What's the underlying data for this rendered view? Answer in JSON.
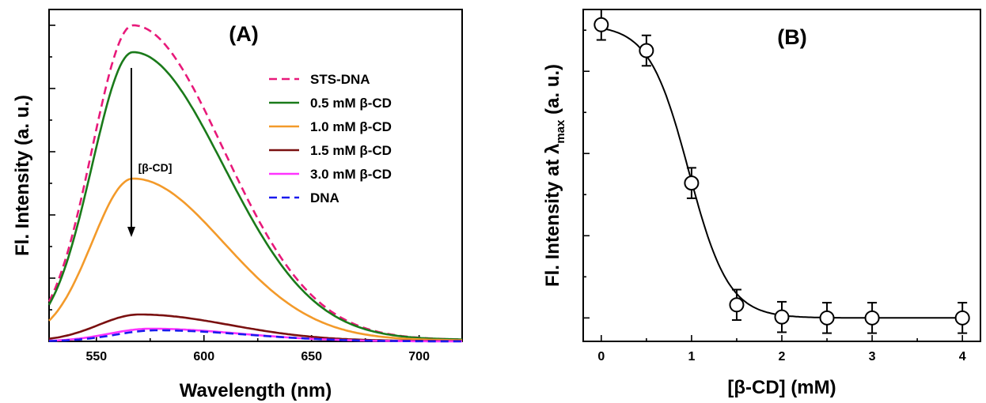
{
  "chart_data": [
    {
      "type": "line",
      "panel_label": "(A)",
      "xlabel": "Wavelength (nm)",
      "ylabel": "Fl. Intensity (a. u.)",
      "xlim": [
        528,
        720
      ],
      "ylim": [
        0,
        1.05
      ],
      "x_ticks": [
        550,
        600,
        650,
        700
      ],
      "y_tick_labels_shown": false,
      "legend_position": "right",
      "annotation": {
        "text": "[β-CD]",
        "arrow": "down",
        "x": 567
      },
      "series": [
        {
          "name": "STS-DNA",
          "color": "#e8197a",
          "style": "dashed",
          "peak_x": 567,
          "peak_y": 1.0,
          "base": 0.005
        },
        {
          "name": "0.5 mM β-CD",
          "color": "#1a7a1a",
          "style": "solid",
          "peak_x": 567,
          "peak_y": 0.915,
          "base": 0.005
        },
        {
          "name": "1.0 mM β-CD",
          "color": "#f39a2a",
          "style": "solid",
          "peak_x": 567,
          "peak_y": 0.515,
          "base": 0.003
        },
        {
          "name": "1.5 mM β-CD",
          "color": "#7a1010",
          "style": "solid",
          "peak_x": 570,
          "peak_y": 0.085,
          "base": 0.001
        },
        {
          "name": "3.0 mM β-CD",
          "color": "#ff33ff",
          "style": "solid",
          "peak_x": 575,
          "peak_y": 0.04,
          "base": 0.0
        },
        {
          "name": "DNA",
          "color": "#1a1aee",
          "style": "dashed",
          "peak_x": 578,
          "peak_y": 0.035,
          "base": 0.0
        }
      ]
    },
    {
      "type": "scatter",
      "panel_label": "(B)",
      "xlabel": "[β-CD] (mM)",
      "ylabel_main": "Fl. Intensity at λ",
      "ylabel_sub": "max",
      "ylabel_tail": " (a. u.)",
      "xlim": [
        -0.2,
        4.2
      ],
      "ylim": [
        -0.04,
        1.05
      ],
      "x_ticks": [
        0,
        1,
        2,
        3,
        4
      ],
      "y_tick_labels_shown": false,
      "x": [
        0,
        0.5,
        1.0,
        1.5,
        2.0,
        2.5,
        3.0,
        4.0
      ],
      "y": [
        1.0,
        0.915,
        0.48,
        0.08,
        0.04,
        0.037,
        0.037,
        0.037
      ],
      "error": [
        0.05,
        0.05,
        0.05,
        0.05,
        0.05,
        0.05,
        0.05,
        0.05
      ],
      "fit_curve": {
        "type": "sigmoid",
        "top": 1.0,
        "bottom": 0.037,
        "x0": 0.97,
        "slope": 0.22
      }
    }
  ]
}
